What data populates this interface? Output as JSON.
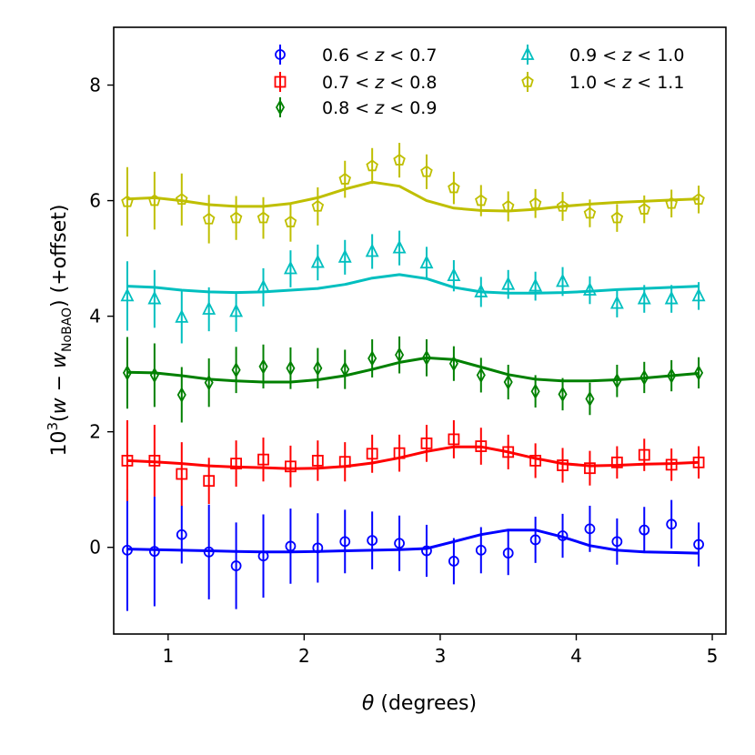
{
  "chart_data": {
    "type": "scatter",
    "xlabel": "θ (degrees)",
    "ylabel": "10³(w − w_NoBAO) (+offset)",
    "ylabel_parts": {
      "base": "10",
      "sup": "3",
      "open": "(",
      "w1": "w",
      "minus": " − ",
      "w2": "w",
      "sub": "NoBAO",
      "close": ")",
      "suffix": " (+offset)"
    },
    "xlabel_parts": {
      "symbol": "θ",
      "rest": " (degrees)"
    },
    "xlim": [
      0.6,
      5.1
    ],
    "ylim": [
      -1.5,
      9.0
    ],
    "xticks": [
      1,
      2,
      3,
      4,
      5
    ],
    "yticks": [
      0,
      2,
      4,
      6,
      8
    ],
    "legend_position": "top-right",
    "series": [
      {
        "name": "0.6 < z < 0.7",
        "label_parts": [
          "0.6 < ",
          "z",
          " < 0.7"
        ],
        "color": "#0000ff",
        "marker": "circle",
        "x": [
          0.7,
          0.9,
          1.1,
          1.3,
          1.5,
          1.7,
          1.9,
          2.1,
          2.3,
          2.5,
          2.7,
          2.9,
          3.1,
          3.3,
          3.5,
          3.7,
          3.9,
          4.1,
          4.3,
          4.5,
          4.7,
          4.9
        ],
        "y": [
          -0.05,
          -0.07,
          0.22,
          -0.08,
          -0.32,
          -0.15,
          0.02,
          -0.01,
          0.1,
          0.12,
          0.07,
          -0.06,
          -0.24,
          -0.05,
          -0.1,
          0.13,
          0.2,
          0.32,
          0.1,
          0.3,
          0.4,
          0.05
        ],
        "yerr": [
          1.05,
          0.95,
          0.5,
          0.82,
          0.75,
          0.72,
          0.65,
          0.6,
          0.55,
          0.5,
          0.48,
          0.45,
          0.4,
          0.4,
          0.38,
          0.4,
          0.38,
          0.4,
          0.4,
          0.4,
          0.42,
          0.38
        ],
        "model_x": [
          0.7,
          0.9,
          1.1,
          1.3,
          1.5,
          1.7,
          1.9,
          2.1,
          2.3,
          2.5,
          2.7,
          2.9,
          3.1,
          3.3,
          3.5,
          3.7,
          3.9,
          4.1,
          4.3,
          4.5,
          4.7,
          4.9
        ],
        "model_y": [
          -0.03,
          -0.04,
          -0.05,
          -0.06,
          -0.07,
          -0.08,
          -0.08,
          -0.07,
          -0.06,
          -0.05,
          -0.04,
          -0.02,
          0.1,
          0.22,
          0.3,
          0.3,
          0.18,
          0.03,
          -0.05,
          -0.08,
          -0.09,
          -0.1
        ]
      },
      {
        "name": "0.7 < z < 0.8",
        "label_parts": [
          "0.7 < ",
          "z",
          " < 0.8"
        ],
        "color": "#ff0000",
        "marker": "square",
        "x": [
          0.7,
          0.9,
          1.1,
          1.3,
          1.5,
          1.7,
          1.9,
          2.1,
          2.3,
          2.5,
          2.7,
          2.9,
          3.1,
          3.3,
          3.5,
          3.7,
          3.9,
          4.1,
          4.3,
          4.5,
          4.7,
          4.9
        ],
        "y": [
          1.5,
          1.5,
          1.27,
          1.15,
          1.45,
          1.52,
          1.4,
          1.5,
          1.48,
          1.62,
          1.63,
          1.8,
          1.87,
          1.75,
          1.65,
          1.5,
          1.42,
          1.37,
          1.47,
          1.6,
          1.43,
          1.47
        ],
        "yerr": [
          0.7,
          0.62,
          0.55,
          0.4,
          0.4,
          0.38,
          0.36,
          0.35,
          0.34,
          0.33,
          0.32,
          0.32,
          0.33,
          0.32,
          0.3,
          0.3,
          0.3,
          0.3,
          0.28,
          0.28,
          0.28,
          0.28
        ],
        "model_x": [
          0.7,
          0.9,
          1.1,
          1.3,
          1.5,
          1.7,
          1.9,
          2.1,
          2.3,
          2.5,
          2.7,
          2.9,
          3.1,
          3.3,
          3.5,
          3.7,
          3.9,
          4.1,
          4.3,
          4.5,
          4.7,
          4.9
        ],
        "model_y": [
          1.5,
          1.48,
          1.45,
          1.41,
          1.39,
          1.38,
          1.36,
          1.37,
          1.4,
          1.46,
          1.55,
          1.66,
          1.74,
          1.74,
          1.65,
          1.54,
          1.45,
          1.41,
          1.42,
          1.44,
          1.45,
          1.47
        ]
      },
      {
        "name": "0.8 < z < 0.9",
        "label_parts": [
          "0.8 < ",
          "z",
          " < 0.9"
        ],
        "color": "#008000",
        "marker": "diamond",
        "x": [
          0.7,
          0.9,
          1.1,
          1.3,
          1.5,
          1.7,
          1.9,
          2.1,
          2.3,
          2.5,
          2.7,
          2.9,
          3.1,
          3.3,
          3.5,
          3.7,
          3.9,
          4.1,
          4.3,
          4.5,
          4.7,
          4.9
        ],
        "y": [
          3.02,
          2.98,
          2.64,
          2.85,
          3.07,
          3.13,
          3.1,
          3.1,
          3.08,
          3.27,
          3.33,
          3.28,
          3.18,
          2.98,
          2.86,
          2.7,
          2.65,
          2.57,
          2.88,
          2.94,
          2.97,
          3.02
        ],
        "yerr": [
          0.62,
          0.55,
          0.48,
          0.42,
          0.4,
          0.38,
          0.36,
          0.35,
          0.34,
          0.33,
          0.32,
          0.32,
          0.3,
          0.3,
          0.3,
          0.28,
          0.28,
          0.28,
          0.28,
          0.27,
          0.27,
          0.27
        ],
        "model_x": [
          0.7,
          0.9,
          1.1,
          1.3,
          1.5,
          1.7,
          1.9,
          2.1,
          2.3,
          2.5,
          2.7,
          2.9,
          3.1,
          3.3,
          3.5,
          3.7,
          3.9,
          4.1,
          4.3,
          4.5,
          4.7,
          4.9
        ],
        "model_y": [
          3.03,
          3.02,
          2.97,
          2.91,
          2.88,
          2.86,
          2.86,
          2.9,
          2.97,
          3.08,
          3.2,
          3.28,
          3.25,
          3.12,
          2.99,
          2.91,
          2.88,
          2.88,
          2.9,
          2.93,
          2.97,
          3.01
        ]
      },
      {
        "name": "0.9 < z < 1.0",
        "label_parts": [
          "0.9 < ",
          "z",
          " < 1.0"
        ],
        "color": "#00bfbf",
        "marker": "triangle",
        "x": [
          0.7,
          0.9,
          1.1,
          1.3,
          1.5,
          1.7,
          1.9,
          2.1,
          2.3,
          2.5,
          2.7,
          2.9,
          3.1,
          3.3,
          3.5,
          3.7,
          3.9,
          4.1,
          4.3,
          4.5,
          4.7,
          4.9
        ],
        "y": [
          4.35,
          4.3,
          3.98,
          4.12,
          4.08,
          4.5,
          4.82,
          4.93,
          5.02,
          5.12,
          5.18,
          4.92,
          4.7,
          4.42,
          4.55,
          4.52,
          4.6,
          4.45,
          4.22,
          4.3,
          4.3,
          4.35
        ],
        "yerr": [
          0.6,
          0.5,
          0.45,
          0.38,
          0.35,
          0.33,
          0.32,
          0.31,
          0.3,
          0.3,
          0.3,
          0.28,
          0.27,
          0.26,
          0.25,
          0.25,
          0.25,
          0.24,
          0.24,
          0.24,
          0.24,
          0.24
        ],
        "model_x": [
          0.7,
          0.9,
          1.1,
          1.3,
          1.5,
          1.7,
          1.9,
          2.1,
          2.3,
          2.5,
          2.7,
          2.9,
          3.1,
          3.3,
          3.5,
          3.7,
          3.9,
          4.1,
          4.3,
          4.5,
          4.7,
          4.9
        ],
        "model_y": [
          4.52,
          4.5,
          4.45,
          4.42,
          4.41,
          4.42,
          4.45,
          4.48,
          4.55,
          4.66,
          4.72,
          4.65,
          4.5,
          4.42,
          4.4,
          4.4,
          4.41,
          4.43,
          4.46,
          4.48,
          4.5,
          4.52
        ]
      },
      {
        "name": "1.0 < z < 1.1",
        "label_parts": [
          "1.0 < ",
          "z",
          " < 1.1"
        ],
        "color": "#bfbf00",
        "marker": "pentagon",
        "x": [
          0.7,
          0.9,
          1.1,
          1.3,
          1.5,
          1.7,
          1.9,
          2.1,
          2.3,
          2.5,
          2.7,
          2.9,
          3.1,
          3.3,
          3.5,
          3.7,
          3.9,
          4.1,
          4.3,
          4.5,
          4.7,
          4.9
        ],
        "y": [
          5.98,
          6.0,
          6.02,
          5.68,
          5.7,
          5.7,
          5.63,
          5.9,
          6.37,
          6.6,
          6.7,
          6.5,
          6.22,
          6.0,
          5.9,
          5.95,
          5.9,
          5.78,
          5.7,
          5.85,
          5.95,
          6.02
        ],
        "yerr": [
          0.6,
          0.5,
          0.45,
          0.42,
          0.38,
          0.36,
          0.34,
          0.33,
          0.32,
          0.31,
          0.3,
          0.3,
          0.28,
          0.27,
          0.26,
          0.25,
          0.25,
          0.24,
          0.24,
          0.24,
          0.24,
          0.24
        ],
        "model_x": [
          0.7,
          0.9,
          1.1,
          1.3,
          1.5,
          1.7,
          1.9,
          2.1,
          2.3,
          2.5,
          2.7,
          2.9,
          3.1,
          3.3,
          3.5,
          3.7,
          3.9,
          4.1,
          4.3,
          4.5,
          4.7,
          4.9
        ],
        "model_y": [
          6.03,
          6.05,
          6.0,
          5.93,
          5.9,
          5.9,
          5.95,
          6.05,
          6.2,
          6.32,
          6.25,
          6.0,
          5.87,
          5.83,
          5.82,
          5.85,
          5.9,
          5.94,
          5.97,
          5.99,
          6.01,
          6.03
        ]
      }
    ]
  }
}
